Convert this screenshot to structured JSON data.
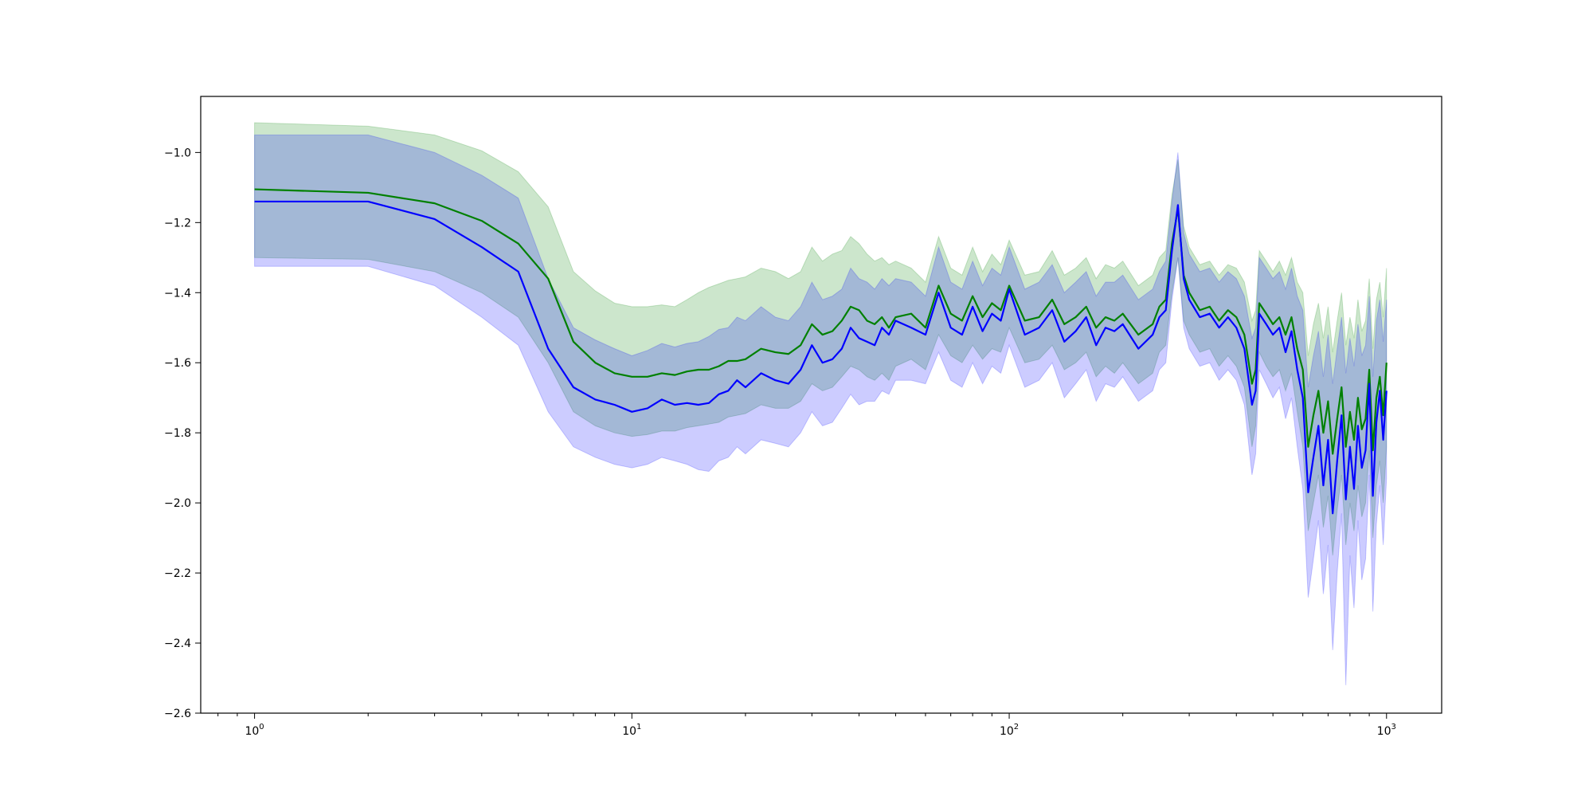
{
  "chart_data": {
    "type": "line",
    "title": "",
    "xlabel": "",
    "ylabel": "",
    "xscale": "log",
    "xlim": [
      0.72,
      1400
    ],
    "ylim": [
      -2.6,
      -0.84
    ],
    "grid": false,
    "legend": "none",
    "x_major_ticks": [
      {
        "value": 1,
        "base": "10",
        "exp": "0"
      },
      {
        "value": 10,
        "base": "10",
        "exp": "1"
      },
      {
        "value": 100,
        "base": "10",
        "exp": "2"
      },
      {
        "value": 1000,
        "base": "10",
        "exp": "3"
      }
    ],
    "y_ticks": [
      {
        "value": -1.0,
        "label": "−1.0"
      },
      {
        "value": -1.2,
        "label": "−1.2"
      },
      {
        "value": -1.4,
        "label": "−1.4"
      },
      {
        "value": -1.6,
        "label": "−1.6"
      },
      {
        "value": -1.8,
        "label": "−1.8"
      },
      {
        "value": -2.0,
        "label": "−2.0"
      },
      {
        "value": -2.2,
        "label": "−2.2"
      },
      {
        "value": -2.4,
        "label": "−2.4"
      },
      {
        "value": -2.6,
        "label": "−2.6"
      }
    ],
    "series": [
      {
        "color": "#008000",
        "band_color": "#008000",
        "band_opacity": 0.2,
        "x": [
          1,
          2,
          3,
          4,
          5,
          6,
          7,
          8,
          9,
          10,
          11,
          12,
          13,
          14,
          15,
          16,
          17,
          18,
          19,
          20,
          22,
          24,
          26,
          28,
          30,
          32,
          34,
          36,
          38,
          40,
          42,
          44,
          46,
          48,
          50,
          55,
          60,
          65,
          70,
          75,
          80,
          85,
          90,
          95,
          100,
          110,
          120,
          130,
          140,
          150,
          160,
          170,
          180,
          190,
          200,
          220,
          240,
          250,
          260,
          270,
          280,
          290,
          300,
          320,
          340,
          360,
          380,
          400,
          420,
          440,
          450,
          460,
          480,
          500,
          520,
          540,
          560,
          580,
          600,
          620,
          640,
          660,
          680,
          700,
          720,
          740,
          760,
          780,
          800,
          820,
          840,
          860,
          880,
          900,
          920,
          940,
          960,
          980,
          1000
        ],
        "mean": [
          -1.105,
          -1.115,
          -1.145,
          -1.195,
          -1.26,
          -1.36,
          -1.54,
          -1.6,
          -1.63,
          -1.64,
          -1.64,
          -1.63,
          -1.635,
          -1.625,
          -1.62,
          -1.62,
          -1.61,
          -1.595,
          -1.595,
          -1.59,
          -1.56,
          -1.57,
          -1.575,
          -1.55,
          -1.49,
          -1.52,
          -1.51,
          -1.48,
          -1.44,
          -1.45,
          -1.48,
          -1.49,
          -1.47,
          -1.5,
          -1.47,
          -1.46,
          -1.5,
          -1.38,
          -1.46,
          -1.48,
          -1.41,
          -1.47,
          -1.43,
          -1.45,
          -1.38,
          -1.48,
          -1.47,
          -1.42,
          -1.49,
          -1.47,
          -1.44,
          -1.5,
          -1.47,
          -1.48,
          -1.46,
          -1.52,
          -1.49,
          -1.44,
          -1.42,
          -1.26,
          -1.16,
          -1.35,
          -1.4,
          -1.45,
          -1.44,
          -1.48,
          -1.45,
          -1.47,
          -1.52,
          -1.66,
          -1.62,
          -1.43,
          -1.46,
          -1.49,
          -1.47,
          -1.52,
          -1.47,
          -1.56,
          -1.62,
          -1.84,
          -1.75,
          -1.68,
          -1.8,
          -1.71,
          -1.86,
          -1.76,
          -1.67,
          -1.84,
          -1.74,
          -1.82,
          -1.7,
          -1.79,
          -1.76,
          -1.62,
          -1.85,
          -1.7,
          -1.64,
          -1.75,
          -1.6
        ],
        "lower": [
          -1.3,
          -1.305,
          -1.34,
          -1.4,
          -1.47,
          -1.6,
          -1.74,
          -1.78,
          -1.8,
          -1.81,
          -1.805,
          -1.795,
          -1.795,
          -1.785,
          -1.78,
          -1.775,
          -1.77,
          -1.755,
          -1.75,
          -1.745,
          -1.72,
          -1.73,
          -1.73,
          -1.71,
          -1.66,
          -1.68,
          -1.67,
          -1.64,
          -1.61,
          -1.62,
          -1.64,
          -1.65,
          -1.63,
          -1.65,
          -1.61,
          -1.59,
          -1.62,
          -1.52,
          -1.58,
          -1.6,
          -1.55,
          -1.59,
          -1.56,
          -1.57,
          -1.5,
          -1.6,
          -1.59,
          -1.55,
          -1.62,
          -1.6,
          -1.57,
          -1.64,
          -1.61,
          -1.63,
          -1.6,
          -1.66,
          -1.63,
          -1.57,
          -1.55,
          -1.4,
          -1.3,
          -1.48,
          -1.52,
          -1.57,
          -1.56,
          -1.61,
          -1.58,
          -1.61,
          -1.67,
          -1.84,
          -1.78,
          -1.57,
          -1.61,
          -1.64,
          -1.62,
          -1.68,
          -1.63,
          -1.74,
          -1.84,
          -2.08,
          -2.0,
          -1.92,
          -2.07,
          -1.98,
          -2.15,
          -2.02,
          -1.92,
          -2.12,
          -2.0,
          -2.08,
          -1.95,
          -2.04,
          -2.0,
          -1.85,
          -2.1,
          -1.95,
          -1.88,
          -2.0,
          -1.84
        ],
        "upper": [
          -0.915,
          -0.925,
          -0.95,
          -0.995,
          -1.055,
          -1.155,
          -1.34,
          -1.395,
          -1.43,
          -1.44,
          -1.44,
          -1.435,
          -1.44,
          -1.42,
          -1.4,
          -1.385,
          -1.375,
          -1.365,
          -1.36,
          -1.355,
          -1.33,
          -1.34,
          -1.36,
          -1.34,
          -1.27,
          -1.31,
          -1.29,
          -1.28,
          -1.24,
          -1.26,
          -1.29,
          -1.31,
          -1.3,
          -1.32,
          -1.31,
          -1.33,
          -1.37,
          -1.24,
          -1.33,
          -1.35,
          -1.27,
          -1.34,
          -1.29,
          -1.32,
          -1.25,
          -1.35,
          -1.34,
          -1.28,
          -1.35,
          -1.33,
          -1.3,
          -1.36,
          -1.32,
          -1.33,
          -1.31,
          -1.38,
          -1.35,
          -1.3,
          -1.28,
          -1.12,
          -1.02,
          -1.21,
          -1.27,
          -1.32,
          -1.31,
          -1.35,
          -1.32,
          -1.33,
          -1.37,
          -1.48,
          -1.45,
          -1.28,
          -1.31,
          -1.34,
          -1.31,
          -1.35,
          -1.3,
          -1.37,
          -1.4,
          -1.58,
          -1.49,
          -1.43,
          -1.53,
          -1.44,
          -1.57,
          -1.48,
          -1.4,
          -1.55,
          -1.47,
          -1.53,
          -1.42,
          -1.51,
          -1.48,
          -1.36,
          -1.56,
          -1.42,
          -1.37,
          -1.47,
          -1.33
        ]
      },
      {
        "color": "#0000ff",
        "band_color": "#0000ff",
        "band_opacity": 0.2,
        "x": [
          1,
          2,
          3,
          4,
          5,
          6,
          7,
          8,
          9,
          10,
          11,
          12,
          13,
          14,
          15,
          16,
          17,
          18,
          19,
          20,
          22,
          24,
          26,
          28,
          30,
          32,
          34,
          36,
          38,
          40,
          42,
          44,
          46,
          48,
          50,
          55,
          60,
          65,
          70,
          75,
          80,
          85,
          90,
          95,
          100,
          110,
          120,
          130,
          140,
          150,
          160,
          170,
          180,
          190,
          200,
          220,
          240,
          250,
          260,
          270,
          280,
          290,
          300,
          320,
          340,
          360,
          380,
          400,
          420,
          440,
          450,
          460,
          480,
          500,
          520,
          540,
          560,
          580,
          600,
          620,
          640,
          660,
          680,
          700,
          720,
          740,
          760,
          780,
          800,
          820,
          840,
          860,
          880,
          900,
          920,
          940,
          960,
          980,
          1000
        ],
        "mean": [
          -1.14,
          -1.14,
          -1.19,
          -1.27,
          -1.34,
          -1.56,
          -1.67,
          -1.705,
          -1.72,
          -1.74,
          -1.73,
          -1.705,
          -1.72,
          -1.715,
          -1.72,
          -1.715,
          -1.69,
          -1.68,
          -1.65,
          -1.67,
          -1.63,
          -1.65,
          -1.66,
          -1.62,
          -1.55,
          -1.6,
          -1.59,
          -1.56,
          -1.5,
          -1.53,
          -1.54,
          -1.55,
          -1.5,
          -1.52,
          -1.48,
          -1.5,
          -1.52,
          -1.4,
          -1.5,
          -1.52,
          -1.44,
          -1.51,
          -1.46,
          -1.48,
          -1.39,
          -1.52,
          -1.5,
          -1.45,
          -1.54,
          -1.51,
          -1.47,
          -1.55,
          -1.5,
          -1.51,
          -1.49,
          -1.56,
          -1.52,
          -1.47,
          -1.45,
          -1.28,
          -1.15,
          -1.36,
          -1.42,
          -1.47,
          -1.46,
          -1.5,
          -1.47,
          -1.5,
          -1.56,
          -1.72,
          -1.68,
          -1.46,
          -1.49,
          -1.52,
          -1.5,
          -1.57,
          -1.51,
          -1.62,
          -1.7,
          -1.97,
          -1.87,
          -1.78,
          -1.95,
          -1.82,
          -2.03,
          -1.88,
          -1.75,
          -1.99,
          -1.84,
          -1.96,
          -1.78,
          -1.9,
          -1.85,
          -1.66,
          -1.98,
          -1.77,
          -1.68,
          -1.82,
          -1.68
        ],
        "lower": [
          -1.325,
          -1.325,
          -1.38,
          -1.47,
          -1.55,
          -1.74,
          -1.84,
          -1.87,
          -1.89,
          -1.9,
          -1.89,
          -1.87,
          -1.88,
          -1.89,
          -1.905,
          -1.91,
          -1.88,
          -1.87,
          -1.84,
          -1.86,
          -1.82,
          -1.83,
          -1.84,
          -1.8,
          -1.74,
          -1.78,
          -1.77,
          -1.73,
          -1.69,
          -1.72,
          -1.71,
          -1.71,
          -1.68,
          -1.69,
          -1.65,
          -1.65,
          -1.66,
          -1.57,
          -1.65,
          -1.67,
          -1.6,
          -1.66,
          -1.61,
          -1.63,
          -1.55,
          -1.67,
          -1.65,
          -1.6,
          -1.7,
          -1.66,
          -1.62,
          -1.71,
          -1.66,
          -1.67,
          -1.64,
          -1.71,
          -1.68,
          -1.62,
          -1.6,
          -1.42,
          -1.3,
          -1.5,
          -1.56,
          -1.61,
          -1.6,
          -1.65,
          -1.62,
          -1.65,
          -1.72,
          -1.92,
          -1.86,
          -1.62,
          -1.66,
          -1.7,
          -1.67,
          -1.76,
          -1.7,
          -1.84,
          -1.96,
          -2.27,
          -2.16,
          -2.05,
          -2.26,
          -2.12,
          -2.42,
          -2.2,
          -2.03,
          -2.52,
          -2.15,
          -2.3,
          -2.05,
          -2.22,
          -2.16,
          -1.92,
          -2.31,
          -2.06,
          -1.95,
          -2.12,
          -1.93
        ],
        "upper": [
          -0.95,
          -0.95,
          -1.0,
          -1.065,
          -1.13,
          -1.36,
          -1.5,
          -1.535,
          -1.56,
          -1.58,
          -1.565,
          -1.545,
          -1.555,
          -1.545,
          -1.54,
          -1.525,
          -1.505,
          -1.5,
          -1.47,
          -1.48,
          -1.44,
          -1.47,
          -1.48,
          -1.44,
          -1.37,
          -1.42,
          -1.41,
          -1.39,
          -1.33,
          -1.36,
          -1.37,
          -1.39,
          -1.36,
          -1.38,
          -1.36,
          -1.37,
          -1.41,
          -1.27,
          -1.37,
          -1.39,
          -1.31,
          -1.38,
          -1.33,
          -1.35,
          -1.27,
          -1.39,
          -1.37,
          -1.32,
          -1.4,
          -1.37,
          -1.34,
          -1.41,
          -1.37,
          -1.37,
          -1.35,
          -1.42,
          -1.39,
          -1.34,
          -1.31,
          -1.14,
          -1.0,
          -1.23,
          -1.29,
          -1.34,
          -1.33,
          -1.37,
          -1.34,
          -1.36,
          -1.41,
          -1.53,
          -1.5,
          -1.3,
          -1.33,
          -1.36,
          -1.34,
          -1.39,
          -1.33,
          -1.41,
          -1.45,
          -1.67,
          -1.58,
          -1.51,
          -1.64,
          -1.52,
          -1.66,
          -1.56,
          -1.47,
          -1.63,
          -1.53,
          -1.61,
          -1.49,
          -1.58,
          -1.55,
          -1.41,
          -1.64,
          -1.48,
          -1.42,
          -1.54,
          -1.42
        ]
      }
    ]
  }
}
